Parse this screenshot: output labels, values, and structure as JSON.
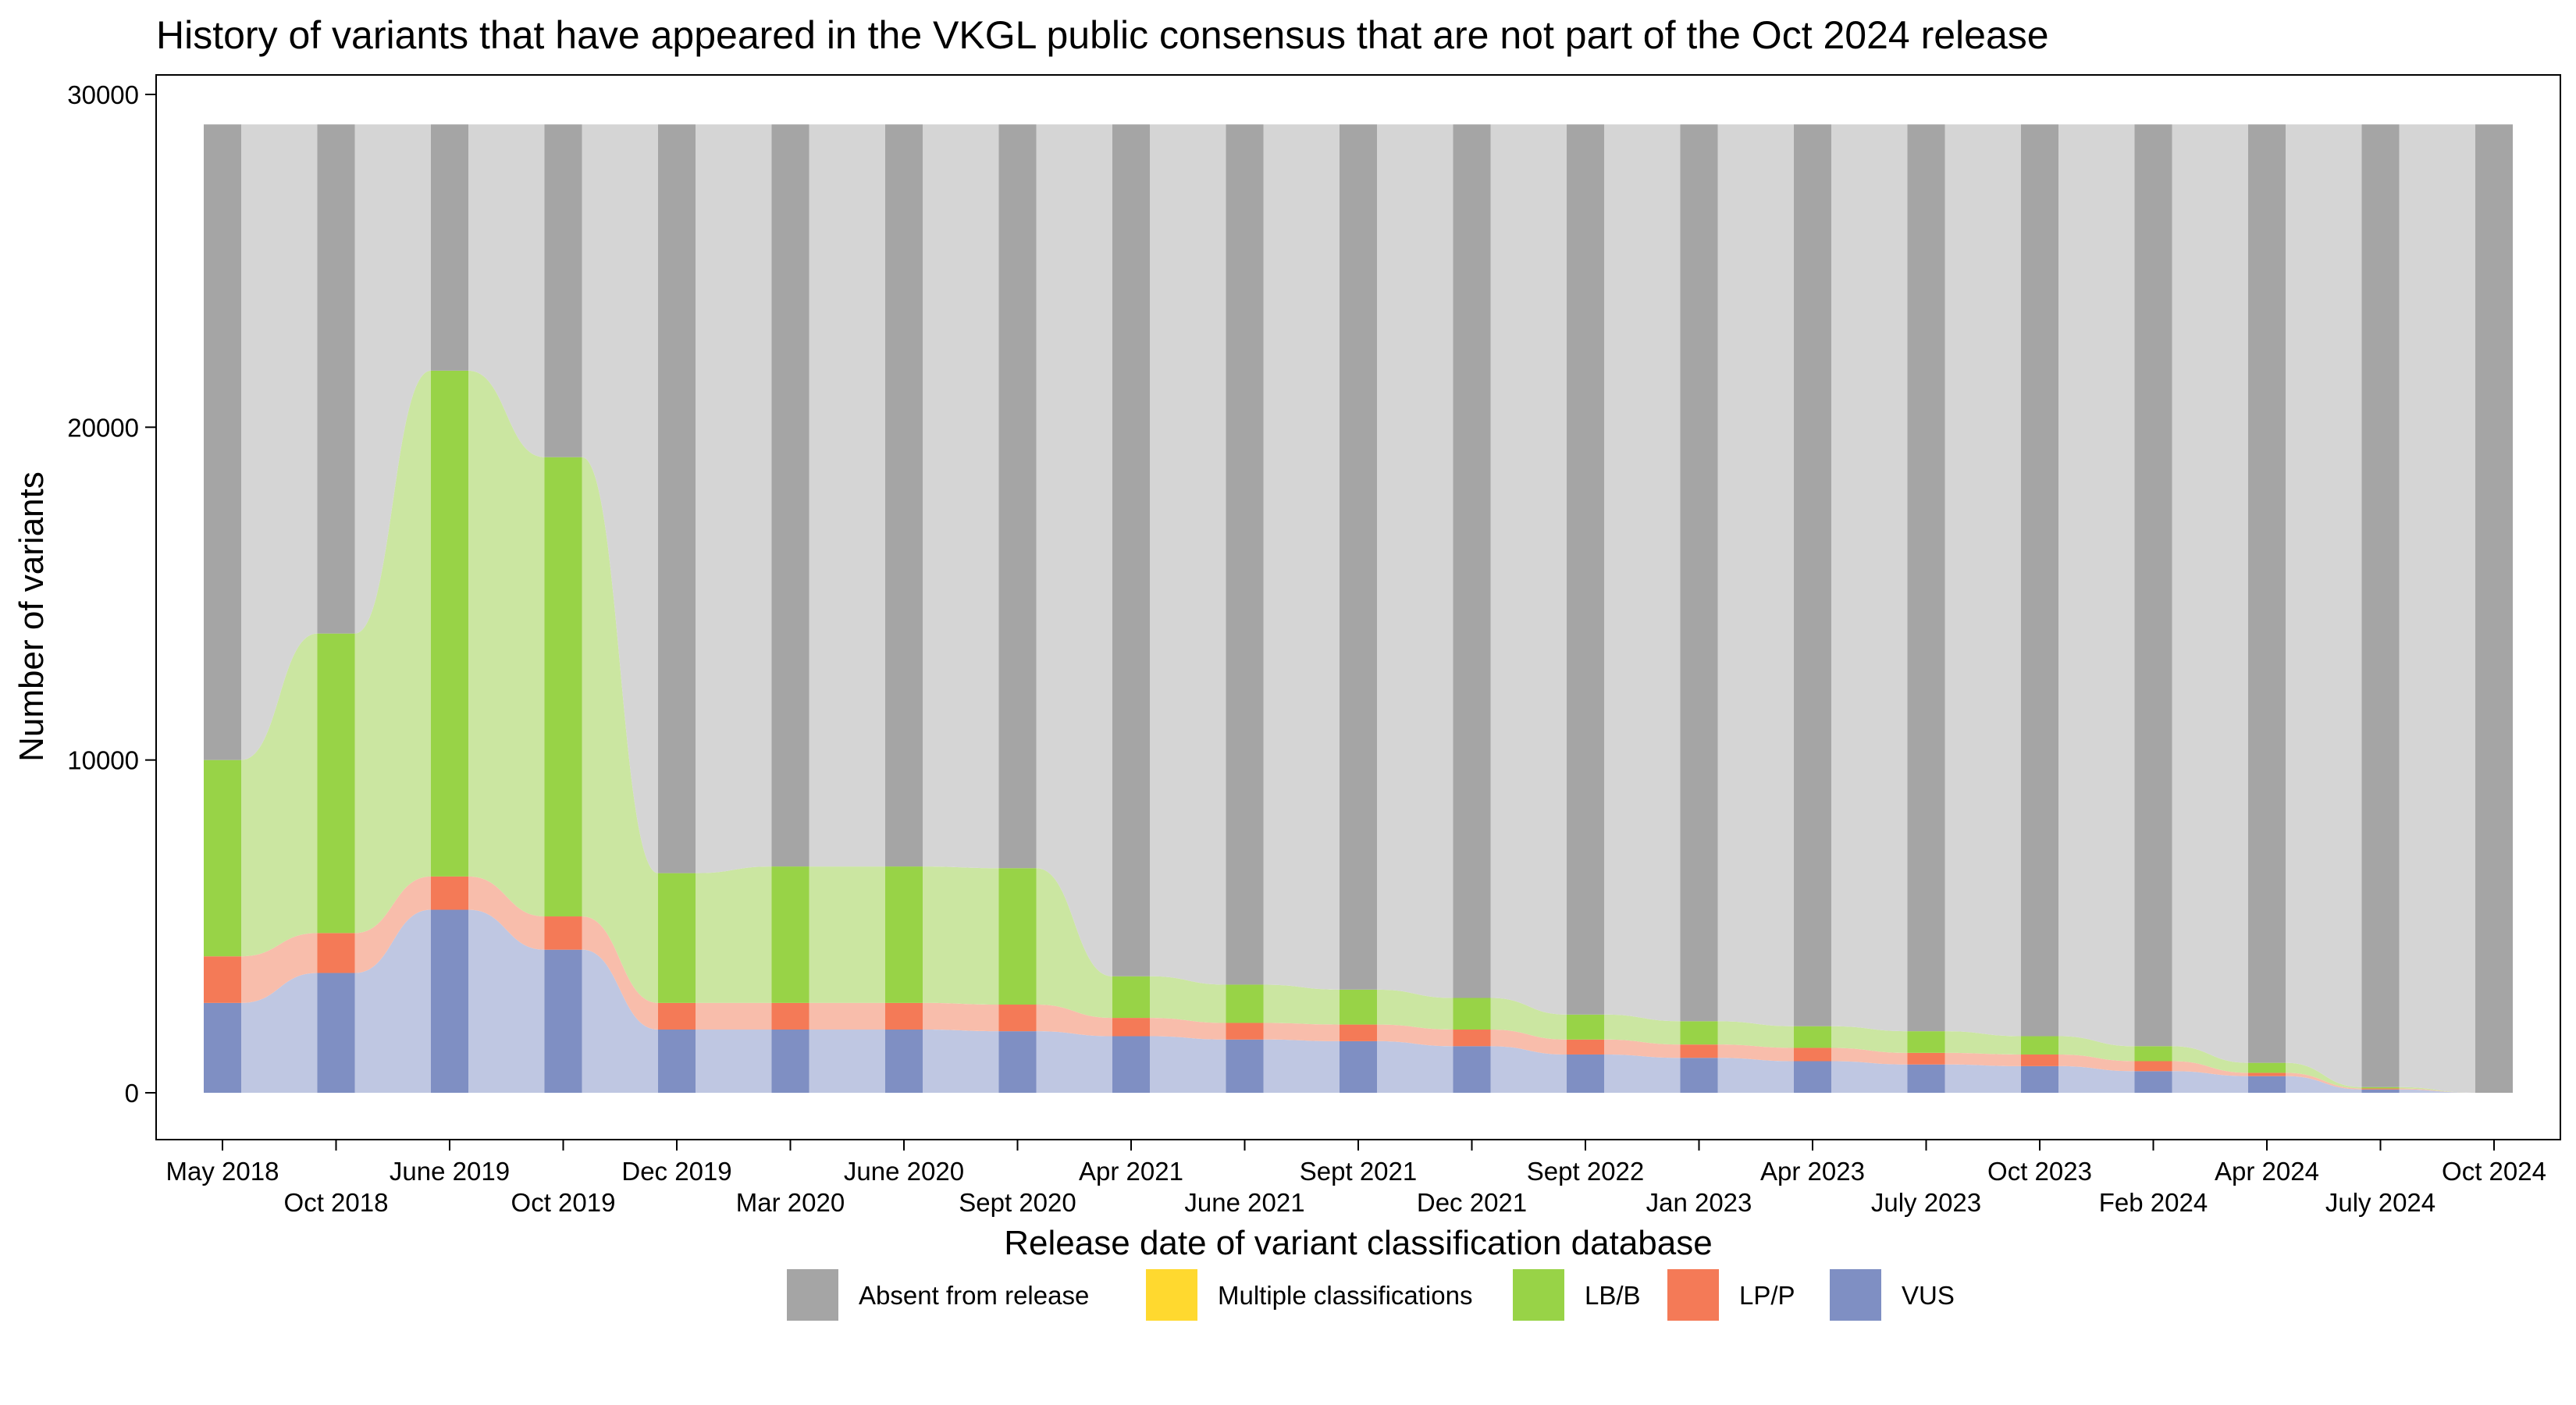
{
  "chart_data": {
    "type": "alluvial-stacked-bar",
    "title": "History of variants that have appeared in the VKGL public consensus that are not part of the Oct 2024 release",
    "xlabel": "Release date of variant classification database",
    "ylabel": "Number of variants",
    "ylim": [
      0,
      30000
    ],
    "yticks": [
      "0",
      "10000",
      "20000",
      "30000"
    ],
    "total": 29100,
    "categories": [
      "May 2018",
      "Oct 2018",
      "June 2019",
      "Oct 2019",
      "Dec 2019",
      "Mar 2020",
      "June 2020",
      "Sept 2020",
      "Apr 2021",
      "June 2021",
      "Sept 2021",
      "Dec 2021",
      "Sept 2022",
      "Jan 2023",
      "Apr 2023",
      "July 2023",
      "Oct 2023",
      "Feb 2024",
      "Apr 2024",
      "July 2024",
      "Oct 2024"
    ],
    "series": [
      {
        "name": "VUS",
        "color": "#7f8fc3",
        "values": [
          2700,
          3600,
          5500,
          4300,
          1900,
          1900,
          1900,
          1850,
          1700,
          1600,
          1550,
          1400,
          1150,
          1050,
          950,
          850,
          800,
          650,
          500,
          100,
          0
        ]
      },
      {
        "name": "LP/P",
        "color": "#f47a57",
        "values": [
          1400,
          1200,
          1000,
          1000,
          800,
          800,
          800,
          800,
          550,
          500,
          500,
          500,
          450,
          400,
          400,
          350,
          350,
          300,
          100,
          30,
          0
        ]
      },
      {
        "name": "LB/B",
        "color": "#98d347",
        "values": [
          5900,
          9000,
          15200,
          13800,
          3900,
          4100,
          4100,
          4100,
          1250,
          1150,
          1050,
          950,
          750,
          700,
          650,
          650,
          550,
          450,
          300,
          40,
          0
        ]
      },
      {
        "name": "Multiple classifications",
        "color": "#ffd92f",
        "values": [
          0,
          0,
          0,
          0,
          0,
          0,
          0,
          0,
          0,
          0,
          0,
          0,
          0,
          0,
          0,
          0,
          0,
          0,
          0,
          0,
          0
        ]
      },
      {
        "name": "Absent from release",
        "color": "#a5a5a5",
        "values": [
          19100,
          15300,
          7400,
          10000,
          22500,
          22300,
          22300,
          22350,
          25600,
          25850,
          26000,
          26250,
          26750,
          26950,
          27100,
          27250,
          27400,
          27700,
          28200,
          28930,
          29100
        ]
      }
    ],
    "legend": {
      "position": "bottom",
      "items": [
        "Absent from release",
        "Multiple classifications",
        "LB/B",
        "LP/P",
        "VUS"
      ],
      "colors": [
        "#a5a5a5",
        "#ffd92f",
        "#98d347",
        "#f47a57",
        "#7f8fc3"
      ]
    },
    "flow_colors": {
      "VUS": "#bcc4e0",
      "LP/P": "#f8b9a6",
      "LB/B": "#c8e59c",
      "Multiple classifications": "#ffeb99",
      "Absent from release": "#d3d3d3"
    }
  }
}
